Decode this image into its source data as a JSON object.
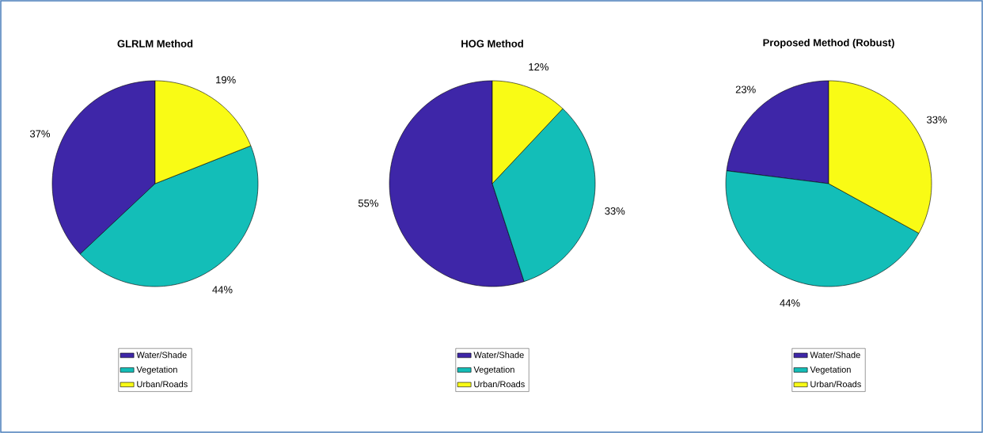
{
  "chart_data": [
    {
      "type": "pie",
      "title": "GLRLM Method",
      "categories": [
        "Water/Shade",
        "Vegetation",
        "Urban/Roads"
      ],
      "values": [
        37,
        44,
        19
      ],
      "colors": [
        "#3e26a8",
        "#13beb8",
        "#f9fb15"
      ],
      "value_labels": [
        "37%",
        "44%",
        "19%"
      ],
      "legend": "bottom"
    },
    {
      "type": "pie",
      "title": "HOG Method",
      "categories": [
        "Water/Shade",
        "Vegetation",
        "Urban/Roads"
      ],
      "values": [
        55,
        33,
        12
      ],
      "colors": [
        "#3e26a8",
        "#13beb8",
        "#f9fb15"
      ],
      "value_labels": [
        "55%",
        "33%",
        "12%"
      ],
      "legend": "bottom"
    },
    {
      "type": "pie",
      "title": "Proposed Method (Robust)",
      "categories": [
        "Water/Shade",
        "Vegetation",
        "Urban/Roads"
      ],
      "values": [
        23,
        44,
        33
      ],
      "colors": [
        "#3e26a8",
        "#13beb8",
        "#f9fb15"
      ],
      "value_labels": [
        "23%",
        "44%",
        "33%"
      ],
      "legend": "bottom"
    }
  ]
}
